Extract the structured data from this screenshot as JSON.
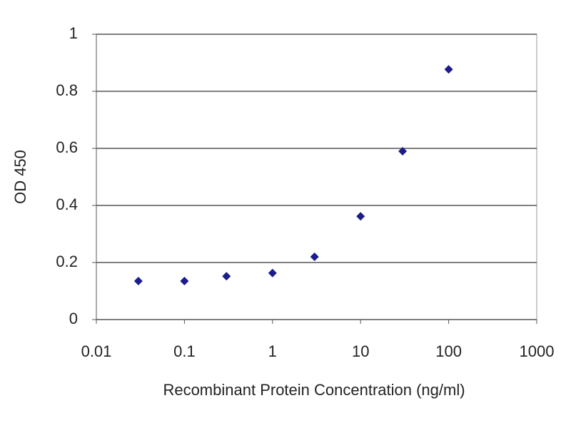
{
  "chart_data": {
    "type": "line",
    "x_label": "Recombinant Protein Concentration (ng/ml)",
    "y_label": "OD 450",
    "x": [
      0.03,
      0.1,
      0.3,
      1,
      3,
      10,
      30,
      100
    ],
    "values": [
      0.135,
      0.135,
      0.152,
      0.163,
      0.22,
      0.362,
      0.59,
      0.877
    ],
    "color": "#1c1c8a",
    "line_color": "#4a5ccc",
    "xscale": "log",
    "xlim": [
      0.01,
      1000
    ],
    "xticks": [
      0.01,
      0.1,
      1,
      10,
      100,
      1000
    ],
    "ylim": [
      0,
      1
    ],
    "yticks": [
      0,
      0.2,
      0.4,
      0.6,
      0.8,
      1
    ],
    "grid": true
  }
}
